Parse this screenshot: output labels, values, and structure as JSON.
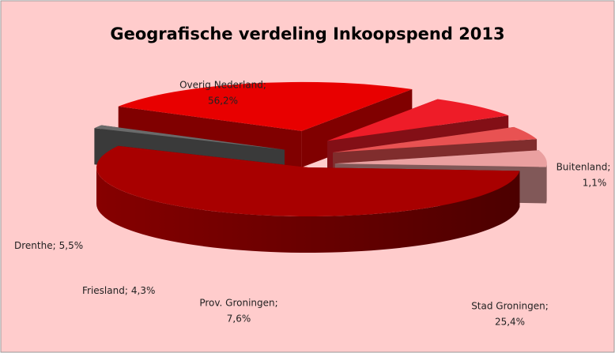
{
  "chart_data": {
    "type": "pie",
    "title": "Geografische verdeling Inkoopspend 2013",
    "categories": [
      "Overig Nederland;",
      "Buitenland;",
      "Stad Groningen;",
      "Prov. Groningen;",
      "Friesland;",
      "Drenthe;"
    ],
    "values": [
      56.2,
      1.1,
      25.4,
      7.6,
      4.3,
      5.5
    ],
    "value_labels": [
      "56,2%",
      "1,1%",
      "25,4%",
      "7,6%",
      "4,3%",
      "5,5%"
    ],
    "colors": [
      "#a80000",
      "#6a6a6a",
      "#e80000",
      "#ee1c28",
      "#e85252",
      "#eaa0a0"
    ]
  }
}
